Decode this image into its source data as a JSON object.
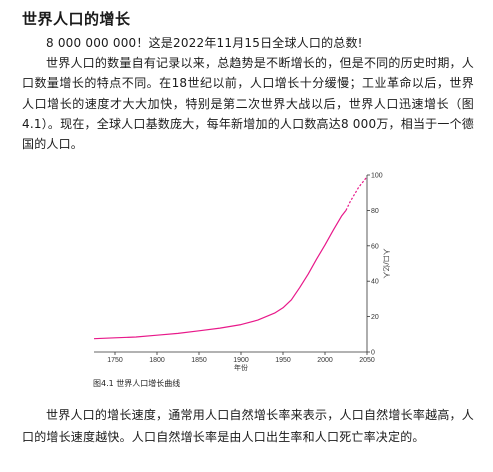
{
  "title": "世界人口的增长",
  "paragraphs": [
    "8 000 000 000！这是2022年11月15日全球人口的总数!",
    "世界人口的数量自有记录以来，总趋势是不断增长的，但是不同的历史时期，人口数量增长的特点不同。在18世纪以前，人口增长十分缓慢；工业革命以后，世界人口增长的速度才大大加快，特别是第二次世界大战以后，世界人口迅速增长（图4.1）。现在，全球人口基数庞大，每年新增加的人口数高达8 000万，相当于一个德国的人口。",
    "世界人口的增长速度，通常用人口自然增长率来表示，人口自然增长率越高，人口的增长速度越快。人口自然增长率是由人口出生率和人口死亡率决定的。"
  ],
  "figure": {
    "caption": "图4.1  世界人口增长曲线"
  },
  "chart_data": {
    "type": "line",
    "xlabel": "年份",
    "ylabel": "人口/亿人",
    "xlim": [
      1725,
      2050
    ],
    "ylim": [
      0,
      100
    ],
    "x_ticks": [
      1750,
      1800,
      1850,
      1900,
      1950,
      2000,
      2050
    ],
    "y_ticks": [
      0,
      20,
      40,
      60,
      80,
      100
    ],
    "series": [
      {
        "style": "solid",
        "color": "#e8198a",
        "x": [
          1725,
          1750,
          1775,
          1800,
          1825,
          1850,
          1875,
          1900,
          1920,
          1940,
          1950,
          1960,
          1970,
          1980,
          1990,
          2000,
          2010,
          2020,
          2025
        ],
        "y": [
          7.5,
          8,
          8.5,
          9.5,
          10.5,
          12,
          13.5,
          15.5,
          18,
          22,
          25,
          29.5,
          36.5,
          44,
          52.5,
          60.5,
          69,
          77,
          80
        ]
      },
      {
        "style": "dashed",
        "color": "#e8198a",
        "x": [
          2025,
          2030,
          2035,
          2040,
          2045,
          2050
        ],
        "y": [
          80,
          85,
          89,
          93,
          96,
          99
        ]
      }
    ]
  }
}
